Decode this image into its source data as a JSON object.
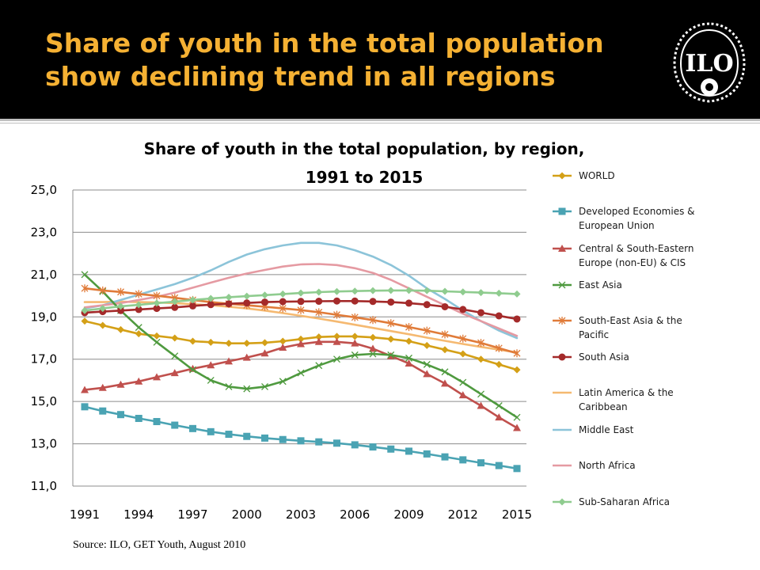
{
  "slide": {
    "title_line1": "Share of youth in the total population",
    "title_line2": "show declining trend in all regions",
    "logo_text": "ILO",
    "source": "Source: ILO, GET Youth, August 2010",
    "title_color": "#f5b133"
  },
  "chart_data": {
    "type": "line",
    "title_line1": "Share of youth in the total population, by region,",
    "title_line2": "1991 to 2015",
    "xlabel": "",
    "ylabel": "",
    "ylim": [
      11,
      25
    ],
    "yticks": [
      "11,0",
      "13,0",
      "15,0",
      "17,0",
      "19,0",
      "21,0",
      "23,0",
      "25,0"
    ],
    "x": [
      1991,
      1992,
      1993,
      1994,
      1995,
      1996,
      1997,
      1998,
      1999,
      2000,
      2001,
      2002,
      2003,
      2004,
      2005,
      2006,
      2007,
      2008,
      2009,
      2010,
      2011,
      2012,
      2013,
      2014,
      2015
    ],
    "xtick_labels": [
      "1991",
      "1994",
      "1997",
      "2000",
      "2003",
      "2006",
      "2009",
      "2012",
      "2015"
    ],
    "legend_position": "right",
    "grid": true,
    "series": [
      {
        "name": "WORLD",
        "color": "#d4a017",
        "marker": "diamond",
        "values": [
          18.8,
          18.6,
          18.4,
          18.2,
          18.1,
          18.0,
          17.85,
          17.8,
          17.75,
          17.75,
          17.78,
          17.85,
          17.95,
          18.05,
          18.08,
          18.08,
          18.03,
          17.95,
          17.85,
          17.65,
          17.45,
          17.25,
          17.0,
          16.75,
          16.5
        ]
      },
      {
        "name": "Developed Economies & European Union",
        "color": "#4aa3b3",
        "marker": "square",
        "values": [
          14.75,
          14.55,
          14.38,
          14.2,
          14.05,
          13.88,
          13.72,
          13.57,
          13.45,
          13.35,
          13.27,
          13.2,
          13.14,
          13.09,
          13.03,
          12.95,
          12.85,
          12.75,
          12.65,
          12.52,
          12.38,
          12.24,
          12.1,
          11.97,
          11.83
        ]
      },
      {
        "name": "Central & South-Eastern Europe (non-EU) & CIS",
        "color": "#c0504d",
        "marker": "triangle",
        "values": [
          15.55,
          15.65,
          15.8,
          15.95,
          16.15,
          16.35,
          16.55,
          16.72,
          16.9,
          17.08,
          17.28,
          17.55,
          17.72,
          17.82,
          17.82,
          17.75,
          17.5,
          17.15,
          16.8,
          16.3,
          15.85,
          15.3,
          14.8,
          14.25,
          13.75
        ]
      },
      {
        "name": "East Asia",
        "color": "#4f9a3f",
        "marker": "x",
        "values": [
          21.0,
          20.2,
          19.3,
          18.5,
          17.8,
          17.15,
          16.5,
          16.0,
          15.7,
          15.6,
          15.7,
          15.95,
          16.35,
          16.7,
          17.0,
          17.2,
          17.25,
          17.2,
          17.05,
          16.75,
          16.4,
          15.9,
          15.35,
          14.8,
          14.25
        ]
      },
      {
        "name": "South-East Asia & the Pacific",
        "color": "#e07b39",
        "marker": "star",
        "values": [
          20.35,
          20.25,
          20.18,
          20.08,
          20.0,
          19.9,
          19.8,
          19.7,
          19.62,
          19.55,
          19.48,
          19.4,
          19.32,
          19.22,
          19.1,
          18.98,
          18.85,
          18.7,
          18.52,
          18.35,
          18.17,
          17.97,
          17.77,
          17.52,
          17.28
        ]
      },
      {
        "name": "South Asia",
        "color": "#a42a2a",
        "marker": "circle",
        "values": [
          19.2,
          19.25,
          19.3,
          19.35,
          19.4,
          19.45,
          19.52,
          19.58,
          19.62,
          19.66,
          19.7,
          19.72,
          19.73,
          19.74,
          19.75,
          19.75,
          19.73,
          19.7,
          19.65,
          19.58,
          19.48,
          19.35,
          19.2,
          19.05,
          18.9
        ]
      },
      {
        "name": "Latin America & the Caribbean",
        "color": "#f5b971",
        "marker": "none",
        "values": [
          19.7,
          19.7,
          19.72,
          19.7,
          19.68,
          19.65,
          19.6,
          19.55,
          19.48,
          19.4,
          19.3,
          19.18,
          19.05,
          18.92,
          18.78,
          18.63,
          18.48,
          18.33,
          18.18,
          18.02,
          17.87,
          17.72,
          17.58,
          17.45,
          17.32
        ]
      },
      {
        "name": "Middle East",
        "color": "#8cc4d9",
        "marker": "none",
        "values": [
          19.4,
          19.55,
          19.8,
          20.05,
          20.3,
          20.55,
          20.85,
          21.2,
          21.6,
          21.95,
          22.2,
          22.38,
          22.5,
          22.5,
          22.38,
          22.15,
          21.85,
          21.45,
          20.95,
          20.35,
          19.85,
          19.3,
          18.8,
          18.35,
          18.0
        ]
      },
      {
        "name": "North Africa",
        "color": "#e59aa2",
        "marker": "none",
        "values": [
          19.45,
          19.55,
          19.65,
          19.8,
          19.95,
          20.15,
          20.38,
          20.62,
          20.85,
          21.05,
          21.22,
          21.38,
          21.48,
          21.5,
          21.45,
          21.3,
          21.08,
          20.75,
          20.35,
          19.95,
          19.55,
          19.15,
          18.8,
          18.45,
          18.1
        ]
      },
      {
        "name": "Sub-Saharan Africa",
        "color": "#8fcc8f",
        "marker": "diamond",
        "values": [
          19.3,
          19.4,
          19.5,
          19.57,
          19.65,
          19.72,
          19.8,
          19.87,
          19.93,
          19.98,
          20.03,
          20.08,
          20.13,
          20.17,
          20.2,
          20.22,
          20.24,
          20.25,
          20.25,
          20.24,
          20.21,
          20.18,
          20.15,
          20.12,
          20.08
        ]
      }
    ]
  }
}
